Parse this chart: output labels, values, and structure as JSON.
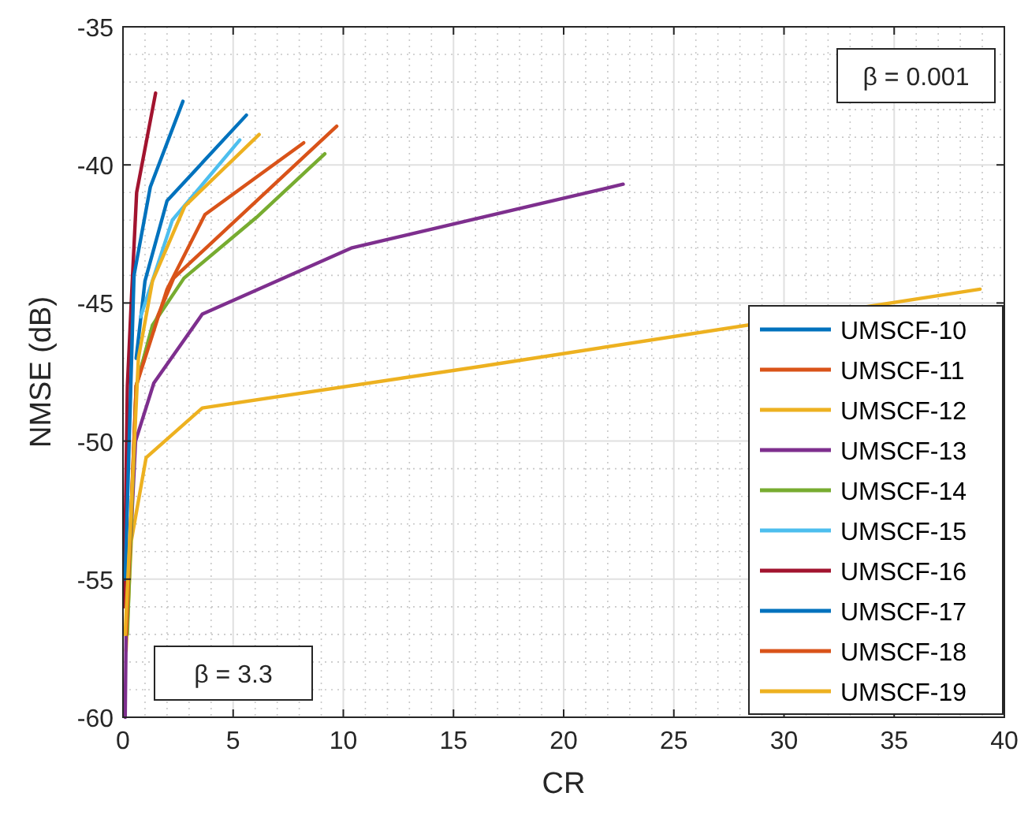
{
  "chart_data": {
    "type": "line",
    "xlabel": "CR",
    "ylabel": "NMSE (dB)",
    "xlim": [
      0,
      40
    ],
    "ylim": [
      -60,
      -35
    ],
    "xticks": [
      0,
      5,
      10,
      15,
      20,
      25,
      30,
      35,
      40
    ],
    "yticks": [
      -60,
      -55,
      -50,
      -45,
      -40,
      -35
    ],
    "grid": true,
    "legend": "bottom right",
    "marker": "none",
    "line_style": "solid",
    "annotations": [
      "β = 0.001",
      "β = 3.3"
    ],
    "series": [
      {
        "name": "UMSCF-10",
        "color": "#0072bd",
        "x": [
          0.6,
          1.0,
          2.0,
          5.6
        ],
        "values": [
          -47,
          -44.2,
          -41.3,
          -38.2
        ]
      },
      {
        "name": "UMSCF-11",
        "color": "#d95319",
        "x": [
          0.15,
          0.6,
          1.3,
          2.3,
          9.7
        ],
        "values": [
          -57,
          -48,
          -46,
          -44.1,
          -38.6
        ]
      },
      {
        "name": "UMSCF-12",
        "color": "#edb120",
        "x": [
          0.14,
          0.38,
          1.05,
          3.6,
          16.2,
          38.9
        ],
        "values": [
          -57.6,
          -53.6,
          -50.6,
          -48.8,
          -47.3,
          -44.5
        ]
      },
      {
        "name": "UMSCF-13",
        "color": "#7e2f8e",
        "x": [
          0.1,
          0.14,
          0.57,
          1.4,
          3.6,
          10.4,
          22.7
        ],
        "values": [
          -60,
          -57,
          -50,
          -47.9,
          -45.4,
          -43,
          -40.7
        ]
      },
      {
        "name": "UMSCF-14",
        "color": "#77ac30",
        "x": [
          0.2,
          0.6,
          1.34,
          2.77,
          6.06,
          9.16
        ],
        "values": [
          -57,
          -48,
          -45.8,
          -44.1,
          -41.9,
          -39.6
        ]
      },
      {
        "name": "UMSCF-15",
        "color": "#4dbeee",
        "x": [
          0.8,
          2.24,
          5.3
        ],
        "values": [
          -45.5,
          -42,
          -39.1
        ]
      },
      {
        "name": "UMSCF-16",
        "color": "#a2142f",
        "x": [
          0.05,
          0.2,
          0.38,
          0.62,
          1.48
        ],
        "values": [
          -56,
          -48,
          -44.9,
          -41,
          -37.4
        ]
      },
      {
        "name": "UMSCF-17",
        "color": "#0072bd",
        "x": [
          0.1,
          0.5,
          1.24,
          2.72
        ],
        "values": [
          -55,
          -44,
          -40.8,
          -37.7
        ]
      },
      {
        "name": "UMSCF-18",
        "color": "#d95319",
        "x": [
          0.15,
          0.6,
          2.0,
          3.72,
          8.2
        ],
        "values": [
          -57,
          -48,
          -44.5,
          -41.8,
          -39.2
        ]
      },
      {
        "name": "UMSCF-19",
        "color": "#edb120",
        "x": [
          0.1,
          0.7,
          1.34,
          2.8,
          6.18
        ],
        "values": [
          -57,
          -47,
          -44.2,
          -41.5,
          -38.9
        ]
      }
    ]
  }
}
